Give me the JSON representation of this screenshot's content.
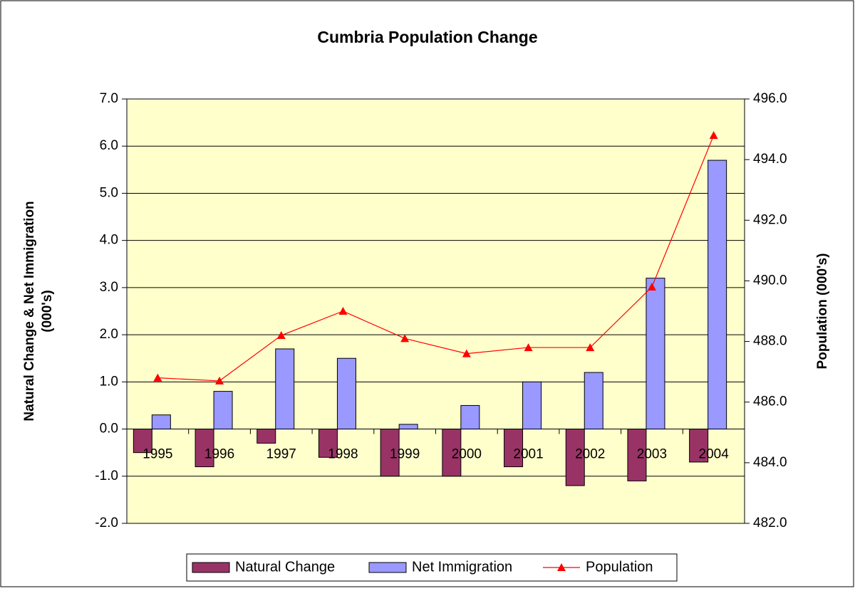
{
  "chart_data": {
    "type": "bar_line",
    "title": "Cumbria Population Change",
    "ylabel": "Natural Change & Net Immigration (000's)",
    "ylabel_lines": [
      "Natural Change & Net Immigration",
      "(000's)"
    ],
    "y2label": "Population (000's)",
    "categories": [
      "1995",
      "1996",
      "1997",
      "1998",
      "1999",
      "2000",
      "2001",
      "2002",
      "2003",
      "2004"
    ],
    "series": [
      {
        "name": "Natural Change",
        "color": "#993366",
        "type": "bar",
        "values": [
          -0.5,
          -0.8,
          -0.3,
          -0.6,
          -1.0,
          -1.0,
          -0.8,
          -1.2,
          -1.1,
          -0.7
        ]
      },
      {
        "name": "Net Immigration",
        "color": "#9999ff",
        "type": "bar",
        "values": [
          0.3,
          0.8,
          1.7,
          1.5,
          0.1,
          0.5,
          1.0,
          1.2,
          3.2,
          5.7
        ]
      },
      {
        "name": "Population",
        "color": "#ff0000",
        "type": "line",
        "axis": "y2",
        "values": [
          486.8,
          486.7,
          488.2,
          489.0,
          488.1,
          487.6,
          487.8,
          487.8,
          489.8,
          494.8
        ]
      }
    ],
    "ylim": [
      -2,
      7
    ],
    "yticks": [
      {
        "value": -2,
        "label": "-2.0"
      },
      {
        "value": -1,
        "label": "-1.0"
      },
      {
        "value": 0,
        "label": "0.0"
      },
      {
        "value": 1,
        "label": "1.0"
      },
      {
        "value": 2,
        "label": "2.0"
      },
      {
        "value": 3,
        "label": "3.0"
      },
      {
        "value": 4,
        "label": "4.0"
      },
      {
        "value": 5,
        "label": "5.0"
      },
      {
        "value": 6,
        "label": "6.0"
      },
      {
        "value": 7,
        "label": "7.0"
      }
    ],
    "y2lim": [
      482,
      496
    ],
    "y2ticks": [
      {
        "value": 482,
        "label": "482.0"
      },
      {
        "value": 484,
        "label": "484.0"
      },
      {
        "value": 486,
        "label": "486.0"
      },
      {
        "value": 488,
        "label": "488.0"
      },
      {
        "value": 490,
        "label": "490.0"
      },
      {
        "value": 492,
        "label": "492.0"
      },
      {
        "value": 494,
        "label": "494.0"
      },
      {
        "value": 496,
        "label": "496.0"
      }
    ],
    "grid": true,
    "legend": "bottom",
    "plot_background": "#ffffcc"
  }
}
